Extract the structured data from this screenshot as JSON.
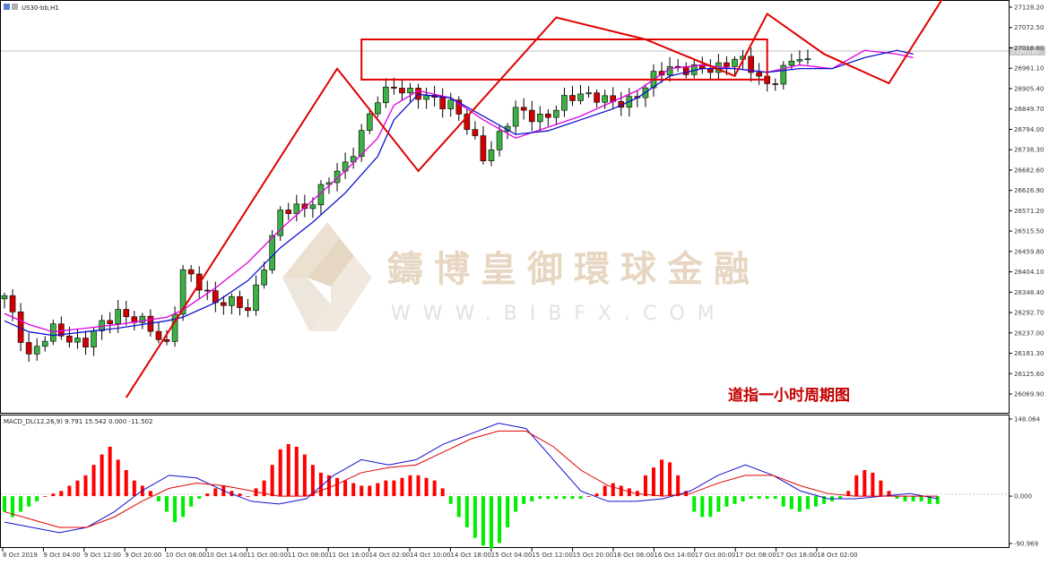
{
  "symbol_label": "US30-bb,H1",
  "watermark": {
    "chinese": "鑄博皇御環球金融",
    "url": "WWW.BIBFX.COM"
  },
  "annotation_title": "道指一小时周期图",
  "price_axis_labels": [
    "27128.20",
    "27072.50",
    "27016.80",
    "26961.10",
    "26905.40",
    "26849.70",
    "26794.00",
    "26738.30",
    "26682.60",
    "26626.90",
    "26571.20",
    "26515.50",
    "26459.80",
    "26404.10",
    "26348.40",
    "26292.70",
    "26237.00",
    "26181.30",
    "26125.60",
    "26069.90"
  ],
  "current_price_label": "27003.80",
  "time_axis_labels": [
    "8 Oct 2019",
    "9 Oct 04:00",
    "9 Oct 12:00",
    "9 Oct 20:00",
    "10 Oct 06:00",
    "10 Oct 14:00",
    "11 Oct 00:00",
    "11 Oct 08:00",
    "11 Oct 16:00",
    "14 Oct 02:00",
    "14 Oct 10:00",
    "14 Oct 18:00",
    "15 Oct 04:00",
    "15 Oct 12:00",
    "15 Oct 20:00",
    "16 Oct 06:00",
    "16 Oct 14:00",
    "17 Oct 00:00",
    "17 Oct 08:00",
    "17 Oct 16:00",
    "18 Oct 02:00"
  ],
  "macd_label": "MACD_DL(12,26,9) 9.791 15.542 0.000 -11.502",
  "macd_axis_labels": [
    "148.064",
    "0.000",
    "-90.969"
  ],
  "colors": {
    "bull": "#3cb043",
    "bear": "#d10000",
    "ma_fast": "#e000e0",
    "ma_slow": "#1010d0",
    "pattern": "#e00000",
    "macd_pos": "#ff0000",
    "macd_neg": "#00ee00"
  },
  "chart_data": [
    {
      "type": "candlestick",
      "title": "US30-bb,H1",
      "timeframe": "H1",
      "ylim": [
        26040,
        27150
      ],
      "candle_count": 100,
      "close_path": [
        [
          0,
          26330
        ],
        [
          3,
          26180
        ],
        [
          6,
          26240
        ],
        [
          10,
          26210
        ],
        [
          14,
          26300
        ],
        [
          17,
          26260
        ],
        [
          20,
          26210
        ],
        [
          22,
          26400
        ],
        [
          26,
          26330
        ],
        [
          30,
          26300
        ],
        [
          34,
          26560
        ],
        [
          38,
          26600
        ],
        [
          42,
          26700
        ],
        [
          46,
          26870
        ],
        [
          48,
          26920
        ],
        [
          51,
          26880
        ],
        [
          55,
          26870
        ],
        [
          59,
          26720
        ],
        [
          63,
          26840
        ],
        [
          67,
          26830
        ],
        [
          71,
          26900
        ],
        [
          75,
          26860
        ],
        [
          78,
          26890
        ],
        [
          82,
          26970
        ],
        [
          86,
          26950
        ],
        [
          90,
          26990
        ],
        [
          94,
          26920
        ],
        [
          98,
          26990
        ],
        [
          102,
          26940
        ],
        [
          106,
          27050
        ],
        [
          110,
          27000
        ],
        [
          112,
          26990
        ]
      ],
      "series": [
        {
          "name": "MA fast",
          "values": [
            26290,
            26260,
            26240,
            26250,
            26260,
            26270,
            26280,
            26300,
            26360,
            26430,
            26520,
            26600,
            26680,
            26770,
            26860,
            26900,
            26880,
            26820,
            26770,
            26800,
            26830,
            26870,
            26900,
            26960,
            26970,
            26960,
            26950,
            26970,
            26960,
            27010,
            27000,
            26990
          ]
        },
        {
          "name": "MA slow",
          "values": [
            26270,
            26240,
            26230,
            26240,
            26250,
            26260,
            26270,
            26280,
            26320,
            26380,
            26470,
            26540,
            26620,
            26720,
            26820,
            26890,
            26880,
            26830,
            26780,
            26790,
            26820,
            26850,
            26880,
            26940,
            26960,
            26960,
            26950,
            26960,
            26960,
            26990,
            27010,
            27000
          ]
        }
      ],
      "pattern_lines": [
        {
          "kind": "zigzag",
          "points": [
            [
              15,
              26060
            ],
            [
              41,
              26960
            ],
            [
              51,
              26680
            ],
            [
              68,
              27100
            ],
            [
              79,
              27040
            ],
            [
              90,
              26940
            ],
            [
              94,
              27110
            ],
            [
              101,
              27000
            ],
            [
              109,
              26920
            ],
            [
              117,
              27200
            ]
          ]
        },
        {
          "kind": "rectangle",
          "x": [
            44,
            94
          ],
          "y": [
            26930,
            27040
          ]
        }
      ]
    },
    {
      "type": "bar",
      "title": "MACD_DL(12,26,9)",
      "ylim": [
        -90.969,
        148.064
      ],
      "histogram": [
        -30,
        -40,
        -30,
        -20,
        -10,
        0,
        5,
        10,
        20,
        30,
        40,
        60,
        80,
        95,
        70,
        50,
        30,
        20,
        10,
        -10,
        -30,
        -50,
        -40,
        -20,
        -5,
        5,
        15,
        20,
        10,
        5,
        0,
        15,
        30,
        60,
        90,
        100,
        95,
        80,
        60,
        45,
        40,
        35,
        30,
        25,
        20,
        20,
        25,
        30,
        30,
        35,
        40,
        40,
        35,
        30,
        15,
        -15,
        -40,
        -60,
        -80,
        -95,
        -100,
        -90,
        -60,
        -30,
        -15,
        -10,
        -5,
        -5,
        -5,
        -5,
        -5,
        -5,
        0,
        5,
        20,
        25,
        20,
        15,
        10,
        40,
        55,
        70,
        65,
        40,
        10,
        -30,
        -40,
        -40,
        -30,
        -20,
        -15,
        -10,
        -5,
        -5,
        -5,
        -5,
        -20,
        -25,
        -30,
        -25,
        -20,
        -15,
        -10,
        -5,
        10,
        40,
        50,
        45,
        30,
        10,
        -5,
        -10,
        -10,
        -10,
        -15,
        -15
      ],
      "macd_line": [
        -50,
        -60,
        -70,
        -60,
        -30,
        10,
        40,
        35,
        10,
        -10,
        -15,
        -5,
        40,
        70,
        60,
        70,
        100,
        120,
        140,
        130,
        70,
        10,
        -10,
        -10,
        -5,
        10,
        40,
        60,
        40,
        10,
        -5,
        -5,
        0,
        5,
        -5
      ],
      "signal_line": [
        -30,
        -45,
        -60,
        -60,
        -40,
        -10,
        15,
        25,
        20,
        10,
        0,
        0,
        20,
        45,
        55,
        60,
        85,
        110,
        125,
        125,
        95,
        50,
        20,
        5,
        0,
        5,
        25,
        40,
        40,
        20,
        5,
        0,
        0,
        0,
        0
      ]
    }
  ]
}
